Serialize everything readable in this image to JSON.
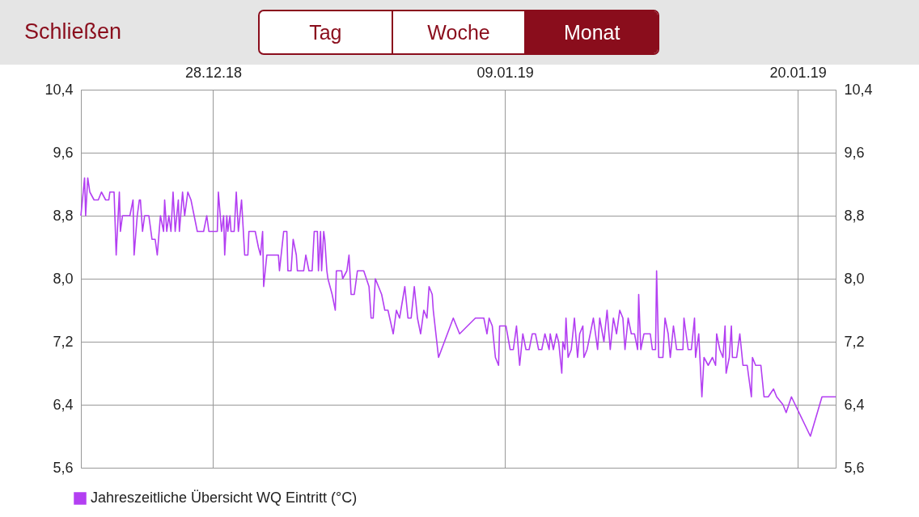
{
  "chart_data": {
    "type": "line",
    "annotations": [
      "Schließen",
      "Tag",
      "Woche",
      "Monat"
    ],
    "x": [
      "2018-12-23T05:30",
      "2018-12-23T09:00",
      "2018-12-23T10:00",
      "2018-12-23T12:00",
      "2018-12-23T14:00",
      "2018-12-23T18:00",
      "2018-12-23T22:00",
      "2018-12-24T01:00",
      "2018-12-24T05:00",
      "2018-12-24T08:00",
      "2018-12-24T09:00",
      "2018-12-24T13:00",
      "2018-12-24T15:00",
      "2018-12-24T18:00",
      "2018-12-24T19:00",
      "2018-12-24T21:00",
      "2018-12-25T04:00",
      "2018-12-25T07:00",
      "2018-12-25T08:00",
      "2018-12-25T11:00",
      "2018-12-25T13:00",
      "2018-12-25T14:00",
      "2018-12-25T16:00",
      "2018-12-25T18:00",
      "2018-12-25T22:00",
      "2018-12-26T01:00",
      "2018-12-26T04:00",
      "2018-12-26T06:00",
      "2018-12-26T09:00",
      "2018-12-26T12:00",
      "2018-12-26T13:00",
      "2018-12-26T15:00",
      "2018-12-26T17:00",
      "2018-12-26T19:00",
      "2018-12-26T21:00",
      "2018-12-26T23:00",
      "2018-12-27T02:00",
      "2018-12-27T03:00",
      "2018-12-27T06:00",
      "2018-12-27T08:00",
      "2018-12-27T11:00",
      "2018-12-27T14:00",
      "2018-12-27T17:00",
      "2018-12-27T20:00",
      "2018-12-28T02:00",
      "2018-12-28T05:00",
      "2018-12-28T07:00",
      "2018-12-28T15:00",
      "2018-12-28T16:00",
      "2018-12-28T19:00",
      "2018-12-28T21:00",
      "2018-12-28T22:00",
      "2018-12-29T00:00",
      "2018-12-29T01:00",
      "2018-12-29T03:00",
      "2018-12-29T04:00",
      "2018-12-29T07:00",
      "2018-12-29T09:00",
      "2018-12-29T11:00",
      "2018-12-29T14:00",
      "2018-12-29T17:00",
      "2018-12-29T20:00",
      "2018-12-29T21:00",
      "2018-12-30T03:00",
      "2018-12-30T06:00",
      "2018-12-30T08:00",
      "2018-12-30T10:00",
      "2018-12-30T11:00",
      "2018-12-30T14:00",
      "2018-12-31T01:00",
      "2018-12-31T02:00",
      "2018-12-31T06:00",
      "2018-12-31T09:00",
      "2018-12-31T10:00",
      "2018-12-31T13:00",
      "2018-12-31T15:00",
      "2018-12-31T18:00",
      "2018-12-31T19:00",
      "2019-01-01T01:00",
      "2019-01-01T03:00",
      "2019-01-01T06:00",
      "2019-01-01T09:00",
      "2019-01-01T11:00",
      "2019-01-01T14:00",
      "2019-01-01T15:00",
      "2019-01-01T17:00",
      "2019-01-01T18:00",
      "2019-01-01T20:00",
      "2019-01-01T21:00",
      "2019-01-01T23:00",
      "2019-01-02T00:00",
      "2019-01-02T04:00",
      "2019-01-02T07:00",
      "2019-01-02T08:00",
      "2019-01-02T13:00",
      "2019-01-02T14:00",
      "2019-01-02T18:00",
      "2019-01-02T20:00",
      "2019-01-02T22:00",
      "2019-01-03T01:00",
      "2019-01-03T04:00",
      "2019-01-03T10:00",
      "2019-01-03T15:00",
      "2019-01-03T17:00",
      "2019-01-03T19:00",
      "2019-01-03T21:00",
      "2019-01-04T00:00",
      "2019-01-04T03:00",
      "2019-01-04T06:00",
      "2019-01-04T09:00",
      "2019-01-04T14:00",
      "2019-01-04T17:00",
      "2019-01-04T20:00",
      "2019-01-05T01:00",
      "2019-01-05T04:00",
      "2019-01-05T07:00",
      "2019-01-05T10:00",
      "2019-01-05T13:00",
      "2019-01-05T16:00",
      "2019-01-05T19:00",
      "2019-01-05T22:00",
      "2019-01-06T00:00",
      "2019-01-06T03:00",
      "2019-01-06T04:00",
      "2019-01-06T09:00",
      "2019-01-06T23:00",
      "2019-01-07T05:00",
      "2019-01-07T20:00",
      "2019-01-08T04:00",
      "2019-01-08T07:00",
      "2019-01-08T09:00",
      "2019-01-08T12:00",
      "2019-01-08T15:00",
      "2019-01-08T18:00",
      "2019-01-08T19:00",
      "2019-01-09T01:00",
      "2019-01-09T05:00",
      "2019-01-09T08:00",
      "2019-01-09T11:00",
      "2019-01-09T14:00",
      "2019-01-09T17:00",
      "2019-01-09T20:00",
      "2019-01-09T23:00",
      "2019-01-10T02:00",
      "2019-01-10T05:00",
      "2019-01-10T08:00",
      "2019-01-10T11:00",
      "2019-01-10T14:00",
      "2019-01-10T18:00",
      "2019-01-10T19:00",
      "2019-01-10T22:00",
      "2019-01-11T01:00",
      "2019-01-11T03:00",
      "2019-01-11T06:00",
      "2019-01-11T07:00",
      "2019-01-11T09:00",
      "2019-01-11T10:00",
      "2019-01-11T12:00",
      "2019-01-11T15:00",
      "2019-01-11T18:00",
      "2019-01-11T21:00",
      "2019-01-11T23:00",
      "2019-01-12T02:00",
      "2019-01-12T03:00",
      "2019-01-12T06:00",
      "2019-01-12T09:00",
      "2019-01-12T12:00",
      "2019-01-12T16:00",
      "2019-01-12T18:00",
      "2019-01-12T22:00",
      "2019-01-13T01:00",
      "2019-01-13T04:00",
      "2019-01-13T07:00",
      "2019-01-13T10:00",
      "2019-01-13T13:00",
      "2019-01-13T16:00",
      "2019-01-13T18:00",
      "2019-01-13T21:00",
      "2019-01-14T00:00",
      "2019-01-14T03:00",
      "2019-01-14T06:00",
      "2019-01-14T07:00",
      "2019-01-14T09:00",
      "2019-01-14T12:00",
      "2019-01-14T18:00",
      "2019-01-14T20:00",
      "2019-01-14T23:00",
      "2019-01-15T00:00",
      "2019-01-15T02:00",
      "2019-01-15T06:00",
      "2019-01-15T08:00",
      "2019-01-15T11:00",
      "2019-01-15T13:00",
      "2019-01-15T16:00",
      "2019-01-15T19:00",
      "2019-01-16T01:00",
      "2019-01-16T02:00",
      "2019-01-16T06:00",
      "2019-01-16T09:00",
      "2019-01-16T12:00",
      "2019-01-16T13:00",
      "2019-01-16T16:00",
      "2019-01-16T19:00",
      "2019-01-16T21:00",
      "2019-01-17T01:00",
      "2019-01-17T05:00",
      "2019-01-17T08:00",
      "2019-01-17T09:00",
      "2019-01-17T12:00",
      "2019-01-17T15:00",
      "2019-01-17T17:00",
      "2019-01-17T18:00",
      "2019-01-17T21:00",
      "2019-01-17T23:00",
      "2019-01-18T00:00",
      "2019-01-18T04:00",
      "2019-01-18T07:00",
      "2019-01-18T10:00",
      "2019-01-18T14:00",
      "2019-01-18T18:00",
      "2019-01-18T19:00",
      "2019-01-18T22:00",
      "2019-01-19T03:00",
      "2019-01-19T06:00",
      "2019-01-19T10:00",
      "2019-01-19T15:00",
      "2019-01-19T18:00",
      "2019-01-20T00:00",
      "2019-01-20T03:00",
      "2019-01-20T08:00",
      "2019-01-21T02:00",
      "2019-01-21T13:00",
      "2019-01-22T02:00"
    ],
    "series": [
      {
        "name": "Jahreszeitliche Übersicht WQ Eintritt (°C)",
        "color": "#b33ff2",
        "values": [
          8.8,
          9.28,
          8.8,
          9.28,
          9.1,
          9.0,
          9.0,
          9.1,
          9.0,
          9.0,
          9.1,
          9.1,
          8.3,
          9.1,
          8.6,
          8.8,
          8.8,
          9.0,
          8.3,
          8.8,
          9.0,
          9.0,
          8.6,
          8.8,
          8.8,
          8.5,
          8.5,
          8.3,
          8.8,
          8.6,
          9.0,
          8.6,
          8.8,
          8.6,
          9.1,
          8.6,
          9.0,
          8.6,
          9.1,
          8.8,
          9.1,
          9.0,
          8.8,
          8.6,
          8.6,
          8.8,
          8.6,
          8.6,
          9.1,
          8.6,
          8.8,
          8.3,
          8.8,
          8.6,
          8.8,
          8.6,
          8.6,
          9.1,
          8.6,
          9.0,
          8.3,
          8.3,
          8.6,
          8.6,
          8.4,
          8.3,
          8.6,
          7.9,
          8.3,
          8.3,
          8.1,
          8.6,
          8.6,
          8.1,
          8.1,
          8.5,
          8.3,
          8.1,
          8.1,
          8.3,
          8.1,
          8.1,
          8.6,
          8.6,
          8.1,
          8.6,
          8.1,
          8.6,
          8.5,
          8.1,
          8.0,
          7.8,
          7.6,
          8.1,
          8.1,
          8.0,
          8.1,
          8.3,
          7.8,
          7.8,
          8.1,
          8.1,
          7.9,
          7.5,
          7.5,
          8.0,
          7.9,
          7.8,
          7.6,
          7.6,
          7.3,
          7.6,
          7.5,
          7.9,
          7.5,
          7.5,
          7.9,
          7.5,
          7.3,
          7.6,
          7.5,
          7.9,
          7.8,
          7.6,
          7.0,
          7.5,
          7.3,
          7.5,
          7.5,
          7.3,
          7.5,
          7.4,
          7.0,
          6.9,
          7.4,
          7.4,
          7.1,
          7.1,
          7.4,
          6.9,
          7.3,
          7.1,
          7.1,
          7.3,
          7.3,
          7.1,
          7.1,
          7.3,
          7.1,
          7.3,
          7.1,
          7.3,
          7.2,
          6.8,
          7.2,
          7.1,
          7.5,
          7.0,
          7.1,
          7.5,
          7.0,
          7.3,
          7.4,
          7.0,
          7.1,
          7.3,
          7.5,
          7.1,
          7.5,
          7.2,
          7.6,
          7.1,
          7.5,
          7.3,
          7.6,
          7.5,
          7.1,
          7.5,
          7.3,
          7.3,
          7.1,
          7.8,
          7.1,
          7.3,
          7.3,
          7.1,
          7.1,
          8.1,
          7.0,
          7.0,
          7.5,
          7.3,
          7.0,
          7.4,
          7.1,
          7.1,
          7.5,
          7.1,
          7.1,
          7.5,
          7.0,
          7.3,
          6.5,
          7.0,
          6.9,
          7.0,
          6.9,
          7.3,
          7.1,
          7.0,
          7.4,
          6.8,
          7.0,
          7.4,
          7.0,
          7.0,
          7.3,
          6.9,
          6.9,
          6.5,
          7.0,
          6.9,
          6.9,
          6.5,
          6.5,
          6.6,
          6.5,
          6.4,
          6.3,
          6.5,
          6.0,
          6.5,
          6.5
        ]
      }
    ],
    "xlim": [
      "2018-12-23T05:30",
      "2019-01-22T02:00"
    ],
    "xticks": [
      {
        "value": "2018-12-28T11:00",
        "label": "28.12.18"
      },
      {
        "value": "2019-01-09T00:00",
        "label": "09.01.19"
      },
      {
        "value": "2019-01-20T14:00",
        "label": "20.01.19"
      }
    ],
    "ylim": [
      5.6,
      10.4
    ],
    "yticks": [
      {
        "value": 5.6,
        "label": "5,6"
      },
      {
        "value": 6.4,
        "label": "6,4"
      },
      {
        "value": 7.2,
        "label": "7,2"
      },
      {
        "value": 8.0,
        "label": "8,0"
      },
      {
        "value": 8.8,
        "label": "8,8"
      },
      {
        "value": 9.6,
        "label": "9,6"
      },
      {
        "value": 10.4,
        "label": "10,4"
      }
    ],
    "y2lim": [
      5.6,
      10.4
    ],
    "y2ticks": [
      {
        "value": 5.6,
        "label": "5,6"
      },
      {
        "value": 6.4,
        "label": "6,4"
      },
      {
        "value": 7.2,
        "label": "7,2"
      },
      {
        "value": 8.0,
        "label": "8,0"
      },
      {
        "value": 8.8,
        "label": "8,8"
      },
      {
        "value": 9.6,
        "label": "9,6"
      },
      {
        "value": 10.4,
        "label": "10,4"
      }
    ],
    "grid": true,
    "legend": "bottom left",
    "marker": "none",
    "line_style": "solid"
  }
}
